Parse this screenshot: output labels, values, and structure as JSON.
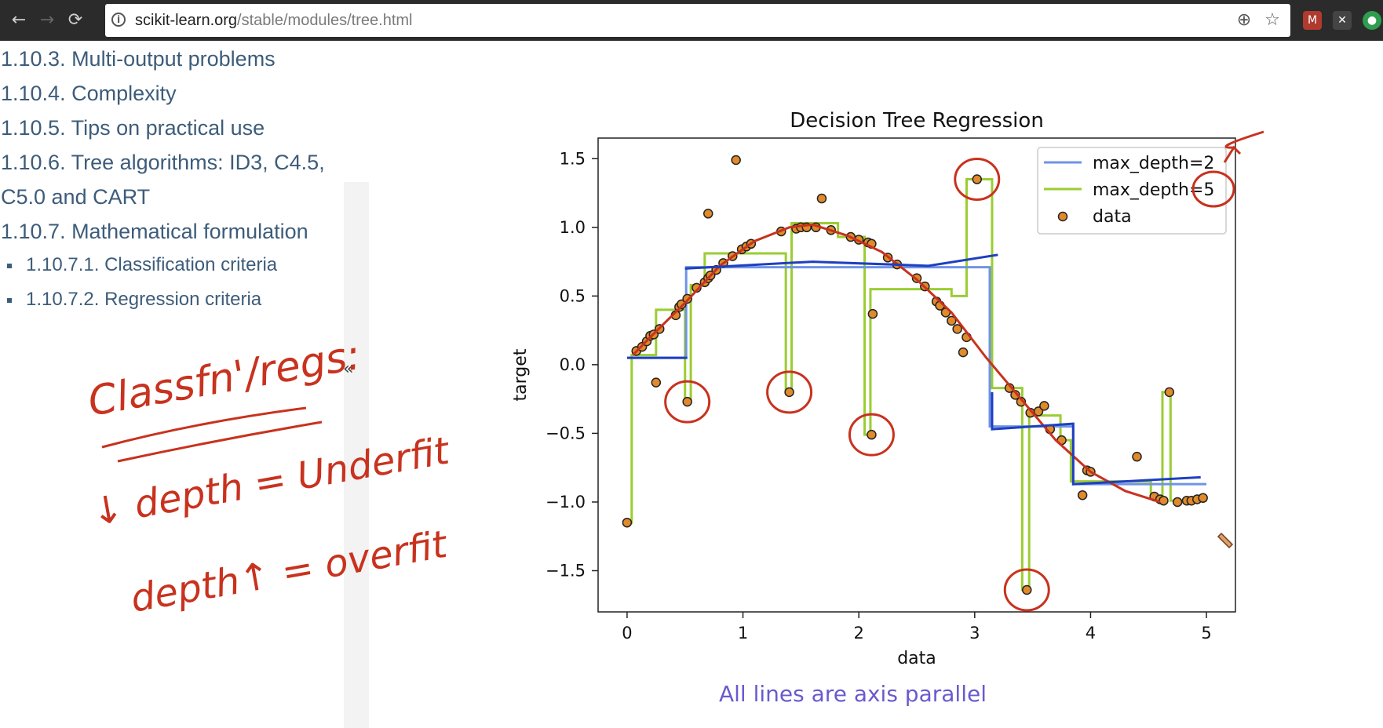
{
  "browser": {
    "nav": {
      "back": "←",
      "forward": "→",
      "reload": "⟳"
    },
    "url_host": "scikit-learn.org",
    "url_path": "/stable/modules/tree.html",
    "icons": {
      "info": "info-icon",
      "zoom": "zoom-icon",
      "star": "star-icon",
      "ext1": "gmail-icon",
      "ext2": "close-extension-icon",
      "ext3": "green-extension-icon"
    }
  },
  "toc": {
    "items": [
      "1.10.3. Multi-output problems",
      "1.10.4. Complexity",
      "1.10.5. Tips on practical use",
      "1.10.6. Tree algorithms: ID3, C4.5,",
      "C5.0 and CART",
      "1.10.7. Mathematical formulation"
    ],
    "subitems": [
      "1.10.7.1. Classification criteria",
      "1.10.7.2. Regression criteria"
    ],
    "collapse_label": "«"
  },
  "annotations": {
    "line1": "Classfn'/regs:",
    "line2": "↓ depth = Underfit",
    "line3": "depth↑ = overfit",
    "ink_color": "#c8321e",
    "caption": "All lines are axis parallel",
    "caption_color": "#6a5acd"
  },
  "chart_data": {
    "type": "scatter",
    "title": "Decision Tree Regression",
    "xlabel": "data",
    "ylabel": "target",
    "xlim": [
      -0.25,
      5.25
    ],
    "ylim": [
      -1.8,
      1.65
    ],
    "xticks": [
      "0",
      "1",
      "2",
      "3",
      "4",
      "5"
    ],
    "yticks": [
      "1.5",
      "1.0",
      "0.5",
      "0.0",
      "−0.5",
      "−1.0",
      "−1.5"
    ],
    "legend": {
      "position": "top-right",
      "entries": [
        "max_depth=2",
        "max_depth=5",
        "data"
      ]
    },
    "series": [
      {
        "name": "max_depth=2",
        "color": "#6f93e6",
        "x": [
          0,
          0.51,
          0.51,
          3.13,
          3.13,
          3.85,
          3.85,
          5
        ],
        "y": [
          0.05,
          0.05,
          0.71,
          0.71,
          -0.45,
          -0.45,
          -0.87,
          -0.87
        ]
      },
      {
        "name": "max_depth=5",
        "color": "#9acd32",
        "x": [
          0,
          0.04,
          0.04,
          0.25,
          0.25,
          0.5,
          0.5,
          0.55,
          0.55,
          0.67,
          0.67,
          1.37,
          1.37,
          1.42,
          1.42,
          1.82,
          1.82,
          2.05,
          2.05,
          2.1,
          2.1,
          2.8,
          2.8,
          2.93,
          2.93,
          3.07,
          3.07,
          3.15,
          3.15,
          3.41,
          3.41,
          3.47,
          3.47,
          3.74,
          3.74,
          3.83,
          3.83,
          4.52,
          4.52,
          4.62,
          4.62,
          4.69,
          4.69,
          5
        ],
        "y": [
          -1.15,
          -1.15,
          0.07,
          0.07,
          0.4,
          0.4,
          -0.27,
          -0.27,
          0.58,
          0.58,
          0.81,
          0.81,
          -0.2,
          -0.2,
          1.03,
          1.03,
          0.93,
          0.93,
          -0.51,
          -0.51,
          0.55,
          0.55,
          0.5,
          0.5,
          1.35,
          1.35,
          1.35,
          1.35,
          -0.17,
          -0.17,
          -1.64,
          -1.64,
          -0.37,
          -0.37,
          -0.55,
          -0.55,
          -0.85,
          -0.85,
          -0.97,
          -0.97,
          -0.2,
          -0.2,
          -0.99,
          -0.99
        ]
      },
      {
        "name": "data",
        "color": "#e08a2a",
        "points": [
          [
            0.0,
            -1.15
          ],
          [
            0.08,
            0.1
          ],
          [
            0.13,
            0.13
          ],
          [
            0.17,
            0.17
          ],
          [
            0.2,
            0.21
          ],
          [
            0.23,
            0.22
          ],
          [
            0.25,
            -0.13
          ],
          [
            0.28,
            0.26
          ],
          [
            0.42,
            0.36
          ],
          [
            0.45,
            0.42
          ],
          [
            0.47,
            0.44
          ],
          [
            0.52,
            0.48
          ],
          [
            0.52,
            -0.27
          ],
          [
            0.6,
            0.56
          ],
          [
            0.67,
            0.6
          ],
          [
            0.7,
            0.63
          ],
          [
            0.72,
            0.65
          ],
          [
            0.7,
            1.1
          ],
          [
            0.77,
            0.69
          ],
          [
            0.83,
            0.74
          ],
          [
            0.91,
            0.79
          ],
          [
            0.94,
            1.49
          ],
          [
            0.99,
            0.84
          ],
          [
            1.03,
            0.86
          ],
          [
            1.07,
            0.88
          ],
          [
            1.33,
            0.97
          ],
          [
            1.4,
            -0.2
          ],
          [
            1.46,
            0.99
          ],
          [
            1.5,
            1.0
          ],
          [
            1.55,
            1.0
          ],
          [
            1.63,
            1.0
          ],
          [
            1.68,
            1.21
          ],
          [
            1.76,
            0.98
          ],
          [
            1.93,
            0.93
          ],
          [
            2.0,
            0.91
          ],
          [
            2.08,
            0.89
          ],
          [
            2.11,
            -0.51
          ],
          [
            2.11,
            0.88
          ],
          [
            2.12,
            0.37
          ],
          [
            2.25,
            0.78
          ],
          [
            2.33,
            0.73
          ],
          [
            2.5,
            0.63
          ],
          [
            2.57,
            0.57
          ],
          [
            2.67,
            0.46
          ],
          [
            2.7,
            0.43
          ],
          [
            2.75,
            0.38
          ],
          [
            2.8,
            0.32
          ],
          [
            2.85,
            0.26
          ],
          [
            2.9,
            0.09
          ],
          [
            2.93,
            0.2
          ],
          [
            3.02,
            1.35
          ],
          [
            3.3,
            -0.17
          ],
          [
            3.35,
            -0.22
          ],
          [
            3.4,
            -0.27
          ],
          [
            3.45,
            -1.64
          ],
          [
            3.48,
            -0.35
          ],
          [
            3.55,
            -0.34
          ],
          [
            3.6,
            -0.3
          ],
          [
            3.65,
            -0.47
          ],
          [
            3.75,
            -0.55
          ],
          [
            3.93,
            -0.95
          ],
          [
            3.97,
            -0.77
          ],
          [
            4.0,
            -0.78
          ],
          [
            4.4,
            -0.67
          ],
          [
            4.55,
            -0.96
          ],
          [
            4.6,
            -0.98
          ],
          [
            4.63,
            -0.99
          ],
          [
            4.68,
            -0.2
          ],
          [
            4.75,
            -1.0
          ],
          [
            4.83,
            -0.99
          ],
          [
            4.87,
            -0.99
          ],
          [
            4.92,
            -0.98
          ],
          [
            4.97,
            -0.97
          ]
        ]
      }
    ]
  }
}
